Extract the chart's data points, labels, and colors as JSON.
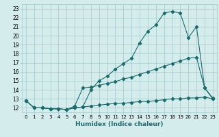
{
  "xlabel": "Humidex (Indice chaleur)",
  "xlim": [
    -0.5,
    23.5
  ],
  "ylim": [
    11.5,
    23.5
  ],
  "xticks": [
    0,
    1,
    2,
    3,
    4,
    5,
    6,
    7,
    8,
    9,
    10,
    11,
    12,
    13,
    14,
    15,
    16,
    17,
    18,
    19,
    20,
    21,
    22,
    23
  ],
  "yticks": [
    12,
    13,
    14,
    15,
    16,
    17,
    18,
    19,
    20,
    21,
    22,
    23
  ],
  "bg_color": "#d4ecec",
  "grid_color": "#aacece",
  "line_color": "#1a6b6b",
  "line_top_x": [
    0,
    1,
    2,
    3,
    4,
    5,
    6,
    7,
    8,
    9,
    10,
    11,
    12,
    13,
    14,
    15,
    16,
    17,
    18,
    19,
    20,
    21,
    22,
    23
  ],
  "line_top_y": [
    12.8,
    12.0,
    12.0,
    11.9,
    11.9,
    11.8,
    12.0,
    12.1,
    14.0,
    15.0,
    15.5,
    16.3,
    16.9,
    17.5,
    19.2,
    20.5,
    21.2,
    22.5,
    22.7,
    22.5,
    19.8,
    21.0,
    14.2,
    13.1
  ],
  "line_mid_x": [
    0,
    1,
    2,
    3,
    4,
    5,
    6,
    7,
    8,
    9,
    10,
    11,
    12,
    13,
    14,
    15,
    16,
    17,
    18,
    19,
    20,
    21,
    22,
    23
  ],
  "line_mid_y": [
    12.8,
    12.0,
    12.0,
    11.9,
    11.9,
    11.8,
    12.2,
    14.2,
    14.3,
    14.5,
    14.7,
    14.9,
    15.2,
    15.4,
    15.7,
    16.0,
    16.3,
    16.6,
    16.9,
    17.2,
    17.5,
    17.6,
    14.2,
    13.0
  ],
  "line_bot_x": [
    0,
    1,
    2,
    3,
    4,
    5,
    6,
    7,
    8,
    9,
    10,
    11,
    12,
    13,
    14,
    15,
    16,
    17,
    18,
    19,
    20,
    21,
    22,
    23
  ],
  "line_bot_y": [
    12.8,
    12.0,
    12.0,
    11.9,
    11.9,
    11.8,
    12.0,
    12.1,
    12.2,
    12.3,
    12.4,
    12.5,
    12.5,
    12.6,
    12.7,
    12.7,
    12.8,
    12.9,
    13.0,
    13.0,
    13.1,
    13.1,
    13.2,
    13.0
  ],
  "marker": "D",
  "marker_size": 2.2
}
